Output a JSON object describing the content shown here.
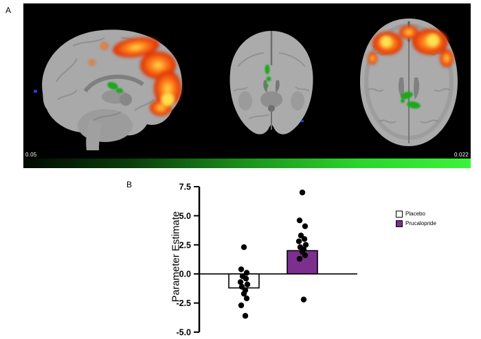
{
  "panels": {
    "a_label": "A",
    "b_label": "B"
  },
  "brain_panel": {
    "colorbar": {
      "left_label": "0.05",
      "right_label": "0.022",
      "stops": [
        "#010a01",
        "#0b3f0b",
        "#1c921c",
        "#2cd42c",
        "#3bf43b"
      ]
    },
    "activation_colors": {
      "hot_core": "#ffe14d",
      "hot_mid": "#ff7a1a",
      "hot_edge": "#d92b04",
      "positive_cluster": "#1fa71f",
      "negative_cluster": "#2b3bd6"
    }
  },
  "chart_data": {
    "type": "bar",
    "categories": [
      "Placebo",
      "Prucalopride"
    ],
    "values": [
      -1.2,
      2.0
    ],
    "bar_colors": [
      "#ffffff",
      "#7c2f8e"
    ],
    "bar_edge_color": "#000000",
    "point_color": "#000000",
    "ylabel": "Parameter Estimate",
    "ylim": [
      -5.0,
      7.5
    ],
    "yticks": [
      "7.5",
      "5.0",
      "2.5",
      "0.0",
      "-2.5",
      "-5.0"
    ],
    "grid": false,
    "legend_position": "right",
    "legend": [
      {
        "label": "Placebo",
        "fill": "#ffffff",
        "edge": "#000000"
      },
      {
        "label": "Prucalopride",
        "fill": "#7c2f8e",
        "edge": "#000000"
      }
    ],
    "points": [
      {
        "category": "Placebo",
        "values": [
          2.3,
          0.4,
          0.1,
          -0.2,
          -0.4,
          -0.7,
          -0.9,
          -1.1,
          -1.4,
          -1.7,
          -2.1,
          -2.7,
          -3.6
        ]
      },
      {
        "category": "Prucalopride",
        "values": [
          7.0,
          4.6,
          4.1,
          3.3,
          3.0,
          2.8,
          2.5,
          2.3,
          2.1,
          1.9,
          1.6,
          1.3,
          -2.2
        ]
      }
    ]
  }
}
